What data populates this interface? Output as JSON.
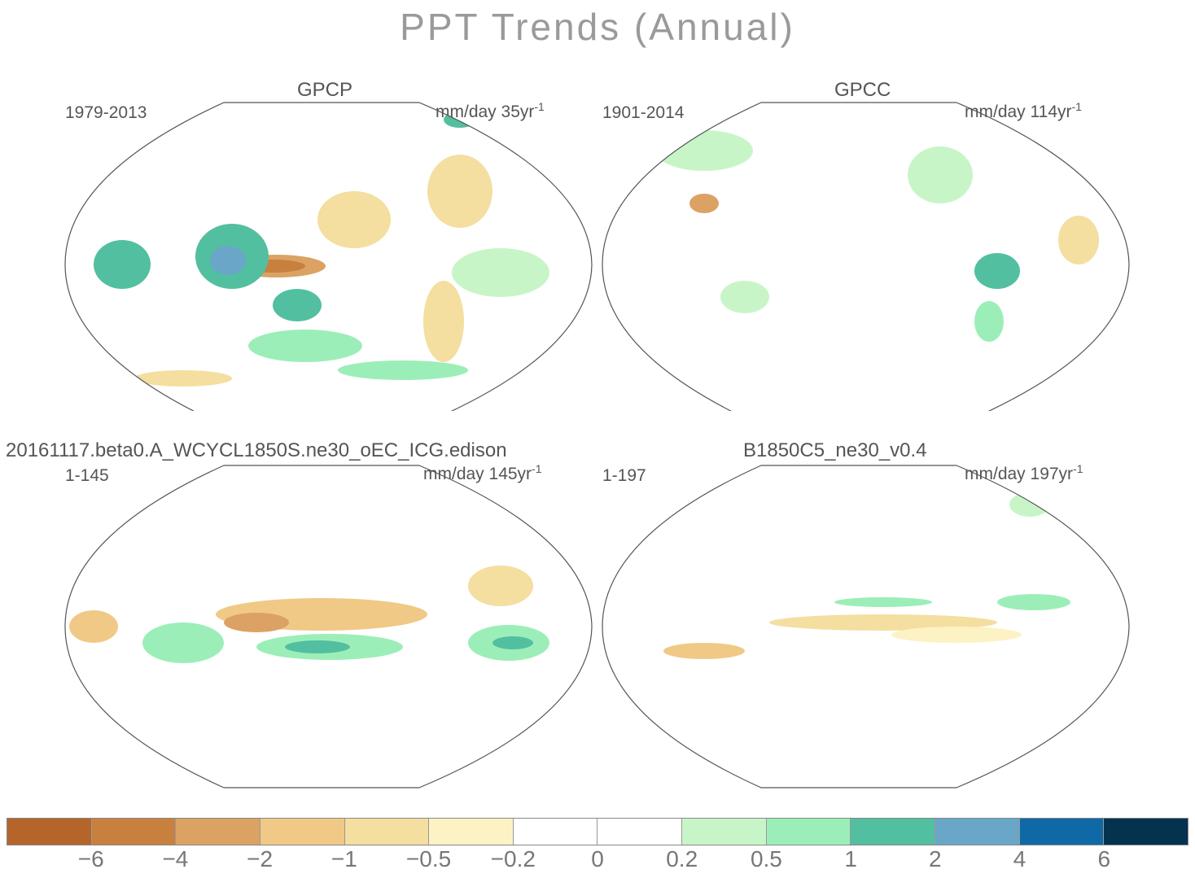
{
  "title": "PPT Trends (Annual)",
  "panels": [
    {
      "name": "GPCP",
      "period": "1979-2013",
      "units": "mm/day 35yr",
      "units_exp": "-1"
    },
    {
      "name": "GPCC",
      "period": "1901-2014",
      "units": "mm/day 114yr",
      "units_exp": "-1"
    },
    {
      "name": "20161117.beta0.A_WCYCL1850S.ne30_oEC_ICG.edison",
      "period": "1-145",
      "units": "mm/day 145yr",
      "units_exp": "-1"
    },
    {
      "name": "B1850C5_ne30_v0.4",
      "period": "1-197",
      "units": "mm/day 197yr",
      "units_exp": "-1"
    }
  ],
  "colorbar": {
    "colors": [
      "#b5652a",
      "#c8803e",
      "#dba263",
      "#f0c986",
      "#f4deA0",
      "#fdf2c4",
      "#ffffff",
      "#ffffff",
      "#c8f5c8",
      "#9ceeb8",
      "#52bfa0",
      "#6aa6c8",
      "#0e69a6",
      "#05324f"
    ],
    "labels": [
      "−6",
      "−4",
      "−2",
      "−1",
      "−0.5",
      "−0.2",
      "0",
      "0.2",
      "0.5",
      "1",
      "2",
      "4",
      "6"
    ]
  }
}
